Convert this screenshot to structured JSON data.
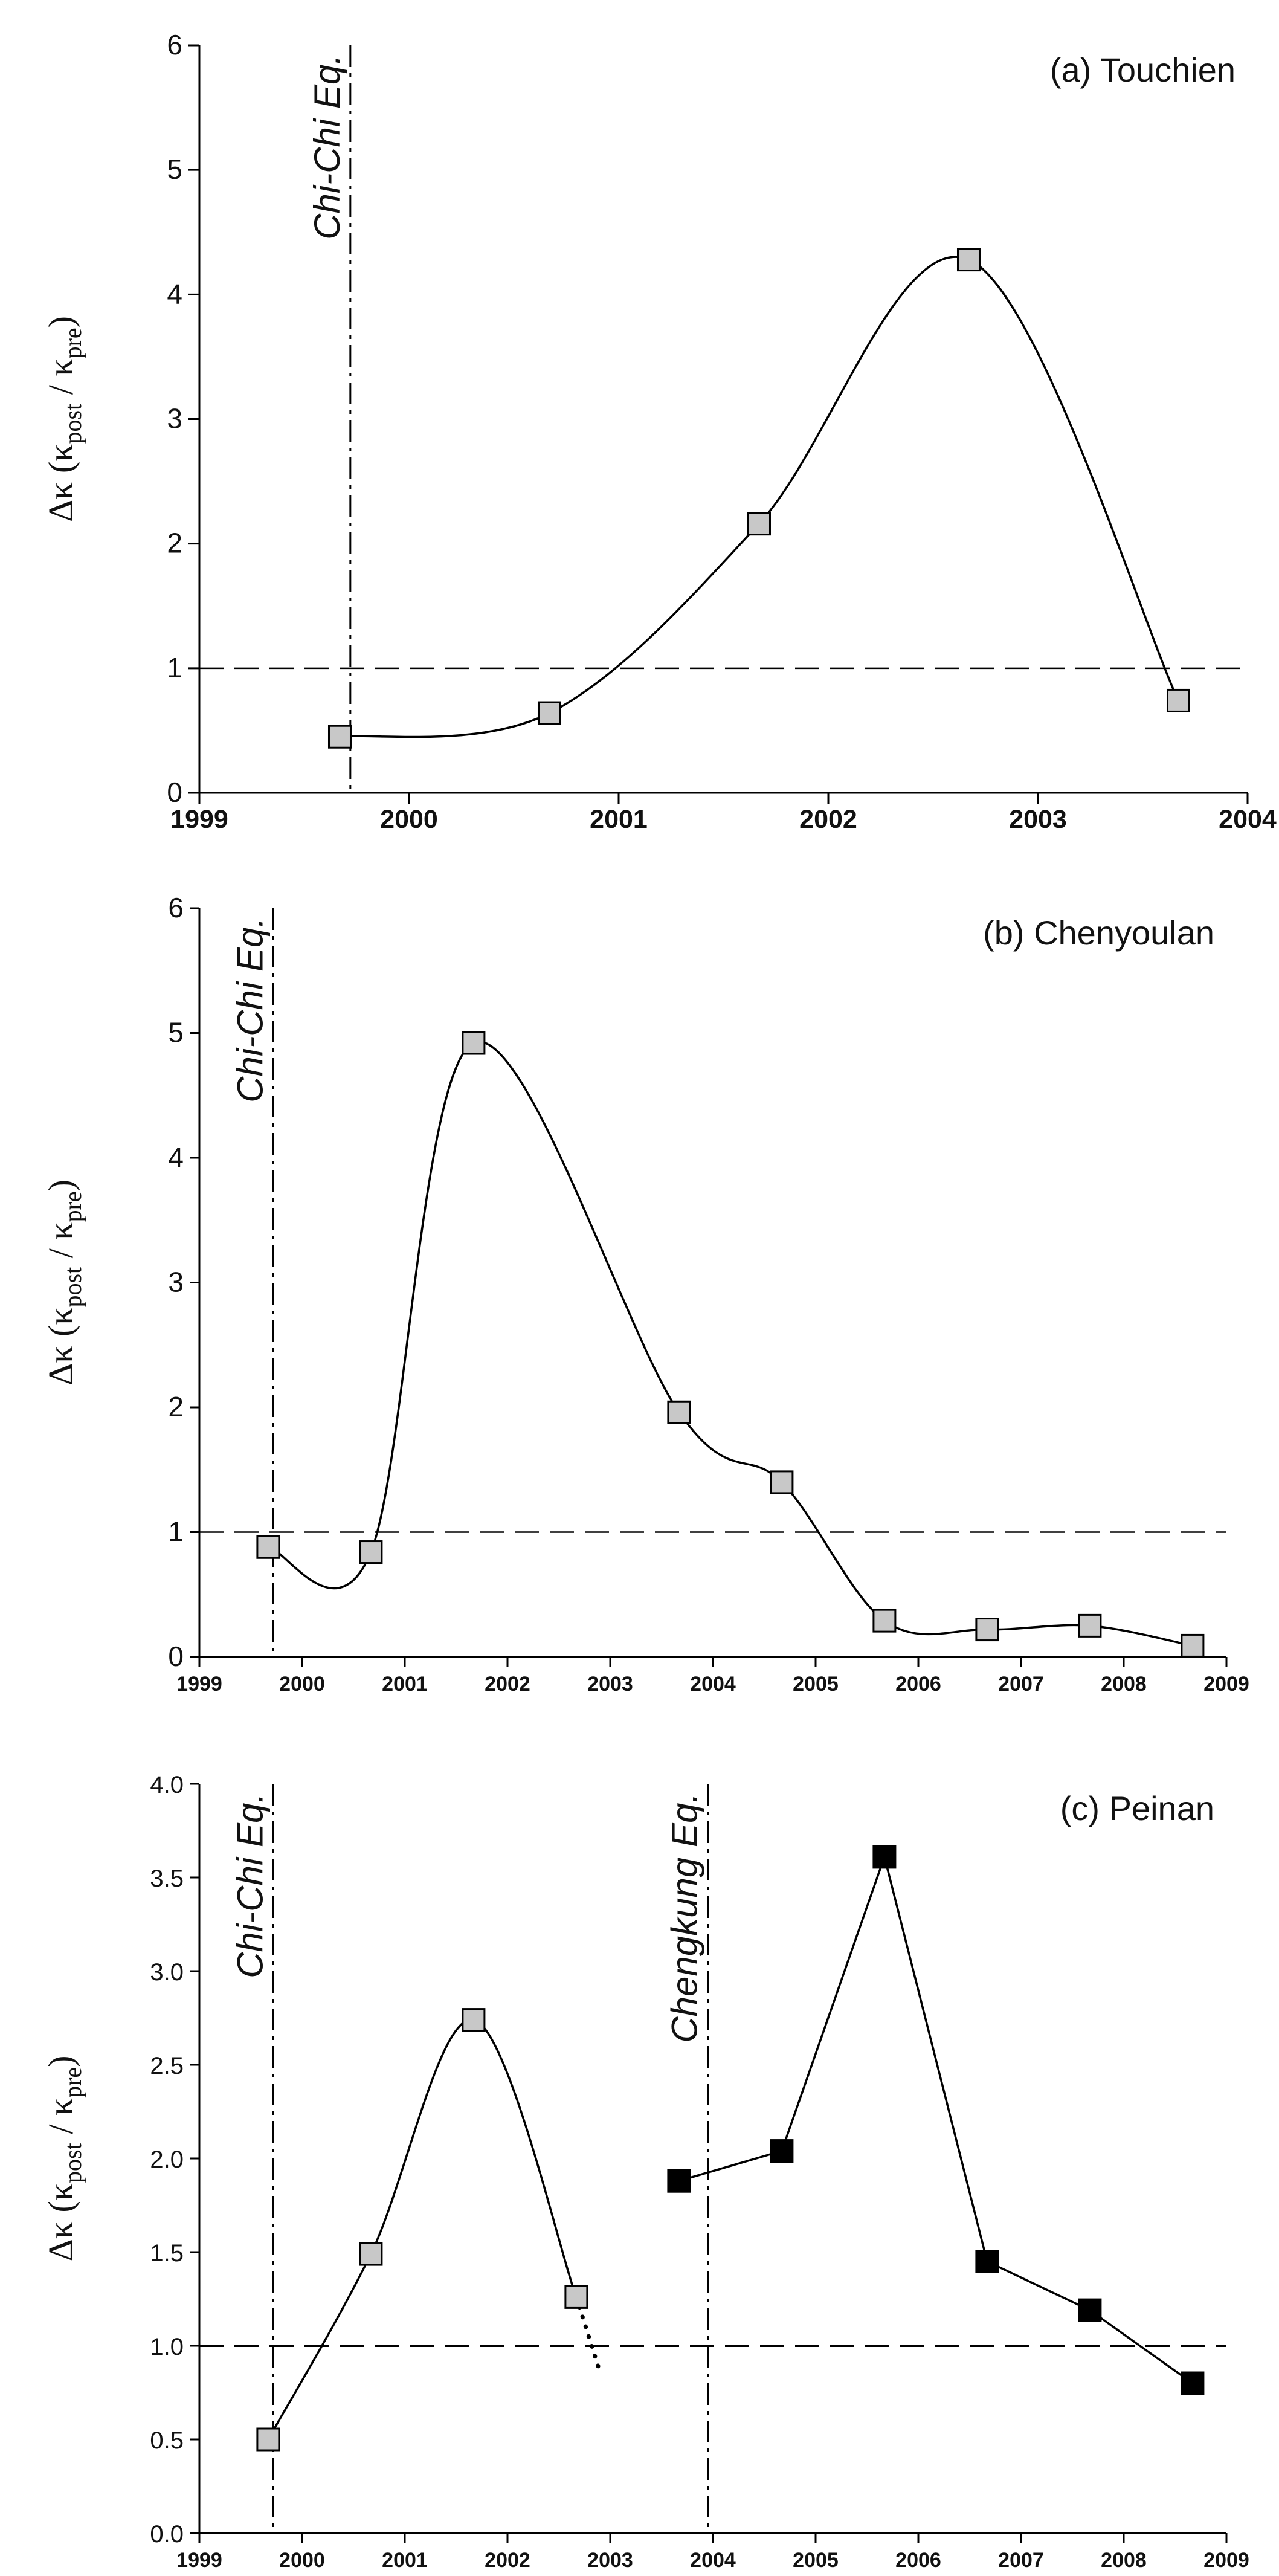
{
  "chart_data": [
    {
      "type": "line",
      "title": "(a) Touchien",
      "xlabel": "",
      "ylabel": {
        "symbol": "Δκ (κ",
        "post": "post",
        "mid": " / κ",
        "pre": "pre",
        "end": ")"
      },
      "xlim": [
        1999,
        2004
      ],
      "ylim": [
        0,
        6
      ],
      "x_ticks": [
        "1999",
        "2000",
        "2001",
        "2002",
        "2003",
        "2004"
      ],
      "y_ticks": [
        "0",
        "1",
        "2",
        "3",
        "4",
        "5",
        "6"
      ],
      "reference_line": 1,
      "events": [
        {
          "label": "Chi-Chi Eq.",
          "x": 1999.72
        }
      ],
      "series": [
        {
          "name": "Touchien",
          "marker": "square",
          "color": "#c8c8c8",
          "points": [
            {
              "x": 1999.67,
              "y": 0.45
            },
            {
              "x": 2000.67,
              "y": 0.64
            },
            {
              "x": 2001.67,
              "y": 2.16
            },
            {
              "x": 2002.67,
              "y": 4.28
            },
            {
              "x": 2003.67,
              "y": 0.74
            }
          ]
        }
      ]
    },
    {
      "type": "line",
      "title": "(b) Chenyoulan",
      "xlabel": "",
      "ylabel": {
        "symbol": "Δκ (κ",
        "post": "post",
        "mid": " / κ",
        "pre": "pre",
        "end": ")"
      },
      "xlim": [
        1999,
        2009
      ],
      "ylim": [
        0,
        6
      ],
      "x_ticks": [
        "1999",
        "2000",
        "2001",
        "2002",
        "2003",
        "2004",
        "2005",
        "2006",
        "2007",
        "2008",
        "2009"
      ],
      "y_ticks": [
        "0",
        "1",
        "2",
        "3",
        "4",
        "5",
        "6"
      ],
      "reference_line": 1,
      "events": [
        {
          "label": "Chi-Chi Eq.",
          "x": 1999.72
        }
      ],
      "series": [
        {
          "name": "Chenyoulan",
          "marker": "square",
          "color": "#c8c8c8",
          "points": [
            {
              "x": 1999.67,
              "y": 0.88
            },
            {
              "x": 2000.67,
              "y": 0.84
            },
            {
              "x": 2001.67,
              "y": 4.92
            },
            {
              "x": 2003.67,
              "y": 1.96
            },
            {
              "x": 2004.67,
              "y": 1.4
            },
            {
              "x": 2005.67,
              "y": 0.29
            },
            {
              "x": 2006.67,
              "y": 0.22
            },
            {
              "x": 2007.67,
              "y": 0.25
            },
            {
              "x": 2008.67,
              "y": 0.09
            }
          ]
        }
      ]
    },
    {
      "type": "line",
      "title": "(c) Peinan",
      "xlabel": "",
      "ylabel": {
        "symbol": "Δκ (κ",
        "post": "post",
        "mid": " / κ",
        "pre": "pre",
        "end": ")"
      },
      "xlim": [
        1999,
        2009
      ],
      "ylim": [
        0,
        4
      ],
      "x_ticks": [
        "1999",
        "2000",
        "2001",
        "2002",
        "2003",
        "2004",
        "2005",
        "2006",
        "2007",
        "2008",
        "2009"
      ],
      "y_ticks": [
        "0.0",
        "0.5",
        "1.0",
        "1.5",
        "2.0",
        "2.5",
        "3.0",
        "3.5",
        "4.0"
      ],
      "reference_line": 1,
      "events": [
        {
          "label": "Chi-Chi Eq.",
          "x": 1999.72
        },
        {
          "label": "Chengkung Eq.",
          "x": 2003.95
        }
      ],
      "series": [
        {
          "name": "Peinan (after Chi-Chi Eq.)",
          "marker": "square",
          "color": "#c8c8c8",
          "points": [
            {
              "x": 1999.67,
              "y": 0.5
            },
            {
              "x": 2000.67,
              "y": 1.49
            },
            {
              "x": 2001.67,
              "y": 2.74
            },
            {
              "x": 2002.67,
              "y": 1.26
            }
          ],
          "dotted_extension": [
            {
              "x": 2002.67,
              "y": 1.26
            },
            {
              "x": 2002.9,
              "y": 0.86
            }
          ]
        },
        {
          "name": "Peinan (after Chengkung Eq.)",
          "marker": "square",
          "color": "#000000",
          "points": [
            {
              "x": 2003.67,
              "y": 1.88
            },
            {
              "x": 2004.67,
              "y": 2.04
            },
            {
              "x": 2005.67,
              "y": 3.61
            },
            {
              "x": 2006.67,
              "y": 1.45
            },
            {
              "x": 2007.67,
              "y": 1.19
            },
            {
              "x": 2008.67,
              "y": 0.8
            }
          ]
        }
      ]
    }
  ]
}
